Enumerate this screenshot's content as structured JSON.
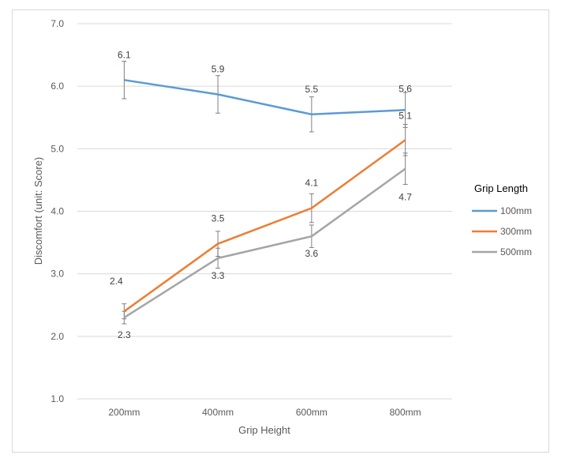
{
  "chart_data": {
    "type": "line",
    "categories": [
      "200mm",
      "400mm",
      "600mm",
      "800mm"
    ],
    "xlabel": "Grip Height",
    "ylabel": "Discomfort (unit: Score)",
    "ylim": [
      1.0,
      7.0
    ],
    "yticks": [
      "1.0",
      "2.0",
      "3.0",
      "4.0",
      "5.0",
      "6.0",
      "7.0"
    ],
    "grid": true,
    "legend_title": "Grip Length",
    "legend_position": "right",
    "series": [
      {
        "name": "100mm",
        "color": "#5b9bd5",
        "values": [
          6.1,
          5.87,
          5.55,
          5.62
        ],
        "labels": [
          "6.1",
          "5.9",
          "5.5",
          "5.6"
        ],
        "error": [
          0.3,
          0.3,
          0.28,
          0.28
        ]
      },
      {
        "name": "300mm",
        "color": "#ed7d31",
        "values": [
          2.4,
          3.48,
          4.05,
          5.14
        ],
        "labels": [
          "2.4",
          "3.5",
          "4.1",
          "5.1"
        ],
        "error": [
          0.12,
          0.2,
          0.23,
          0.25
        ]
      },
      {
        "name": "500mm",
        "color": "#a5a5a5",
        "values": [
          2.3,
          3.25,
          3.6,
          4.68
        ],
        "labels": [
          "2.3",
          "3.3",
          "3.6",
          "4.7"
        ],
        "error": [
          0.1,
          0.16,
          0.18,
          0.25
        ]
      }
    ]
  }
}
